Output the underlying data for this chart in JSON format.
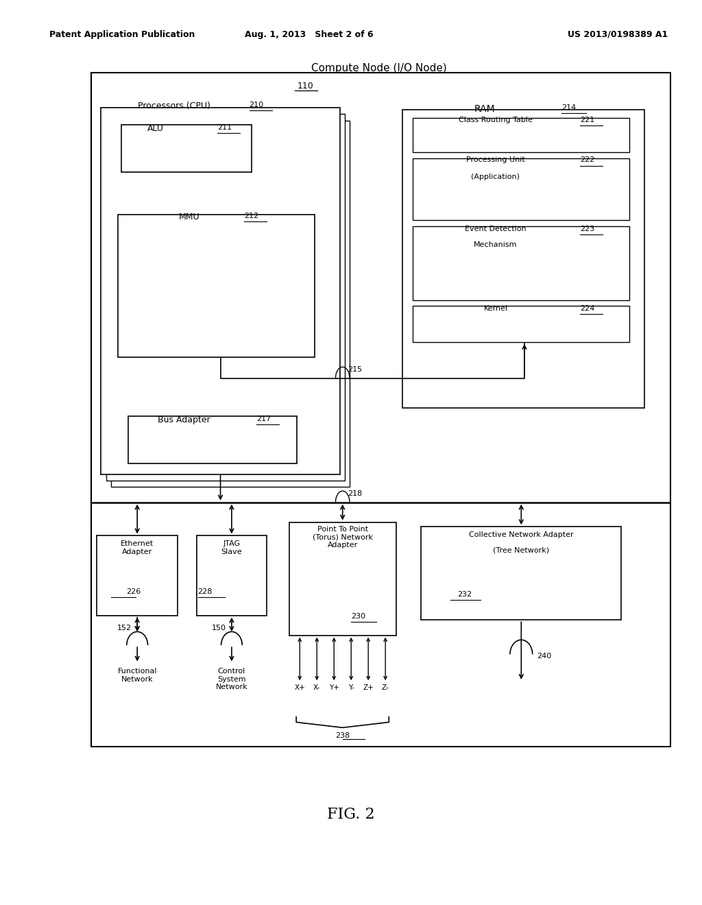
{
  "bg_color": "#ffffff",
  "header_left": "Patent Application Publication",
  "header_mid": "Aug. 1, 2013   Sheet 2 of 6",
  "header_right": "US 2013/0198389 A1",
  "fig_label": "FIG. 2",
  "outer_label": "Compute Node (I/O Node)",
  "outer_ref": "110",
  "cpu_label": "Processors (CPU)",
  "cpu_ref": "210",
  "alu_label": "ALU",
  "alu_ref": "211",
  "mmu_label": "MMU",
  "mmu_ref": "212",
  "ram_label": "RAM",
  "ram_ref": "214",
  "crt_label": "Class Routing Table",
  "crt_ref": "221",
  "pu_label1": "Processing Unit",
  "pu_label2": "(Application)",
  "pu_ref": "222",
  "edm_label1": "Event Detection",
  "edm_label2": "Mechanism",
  "edm_ref": "223",
  "kernel_label": "Kernel",
  "kernel_ref": "224",
  "bus_label": "Bus Adapter",
  "bus_ref": "217",
  "ref_215": "215",
  "ref_218": "218",
  "eth_label": "Ethernet\nAdapter",
  "eth_ref": "226",
  "jtag_label": "JTAG\nSlave",
  "jtag_ref": "228",
  "ptp_label": "Point To Point\n(Torus) Network\nAdapter",
  "ptp_ref": "230",
  "cna_label1": "Collective Network Adapter",
  "cna_label2": "(Tree Network)",
  "cna_ref": "232",
  "fn_label": "Functional\nNetwork",
  "fn_ref": "152",
  "csn_label": "Control\nSystem\nNetwork",
  "csn_ref": "150",
  "torus_labels": [
    "X+",
    "X-",
    "Y+",
    "Y-",
    "Z+",
    "Z-"
  ],
  "torus_ref": "238",
  "ref_240": "240"
}
